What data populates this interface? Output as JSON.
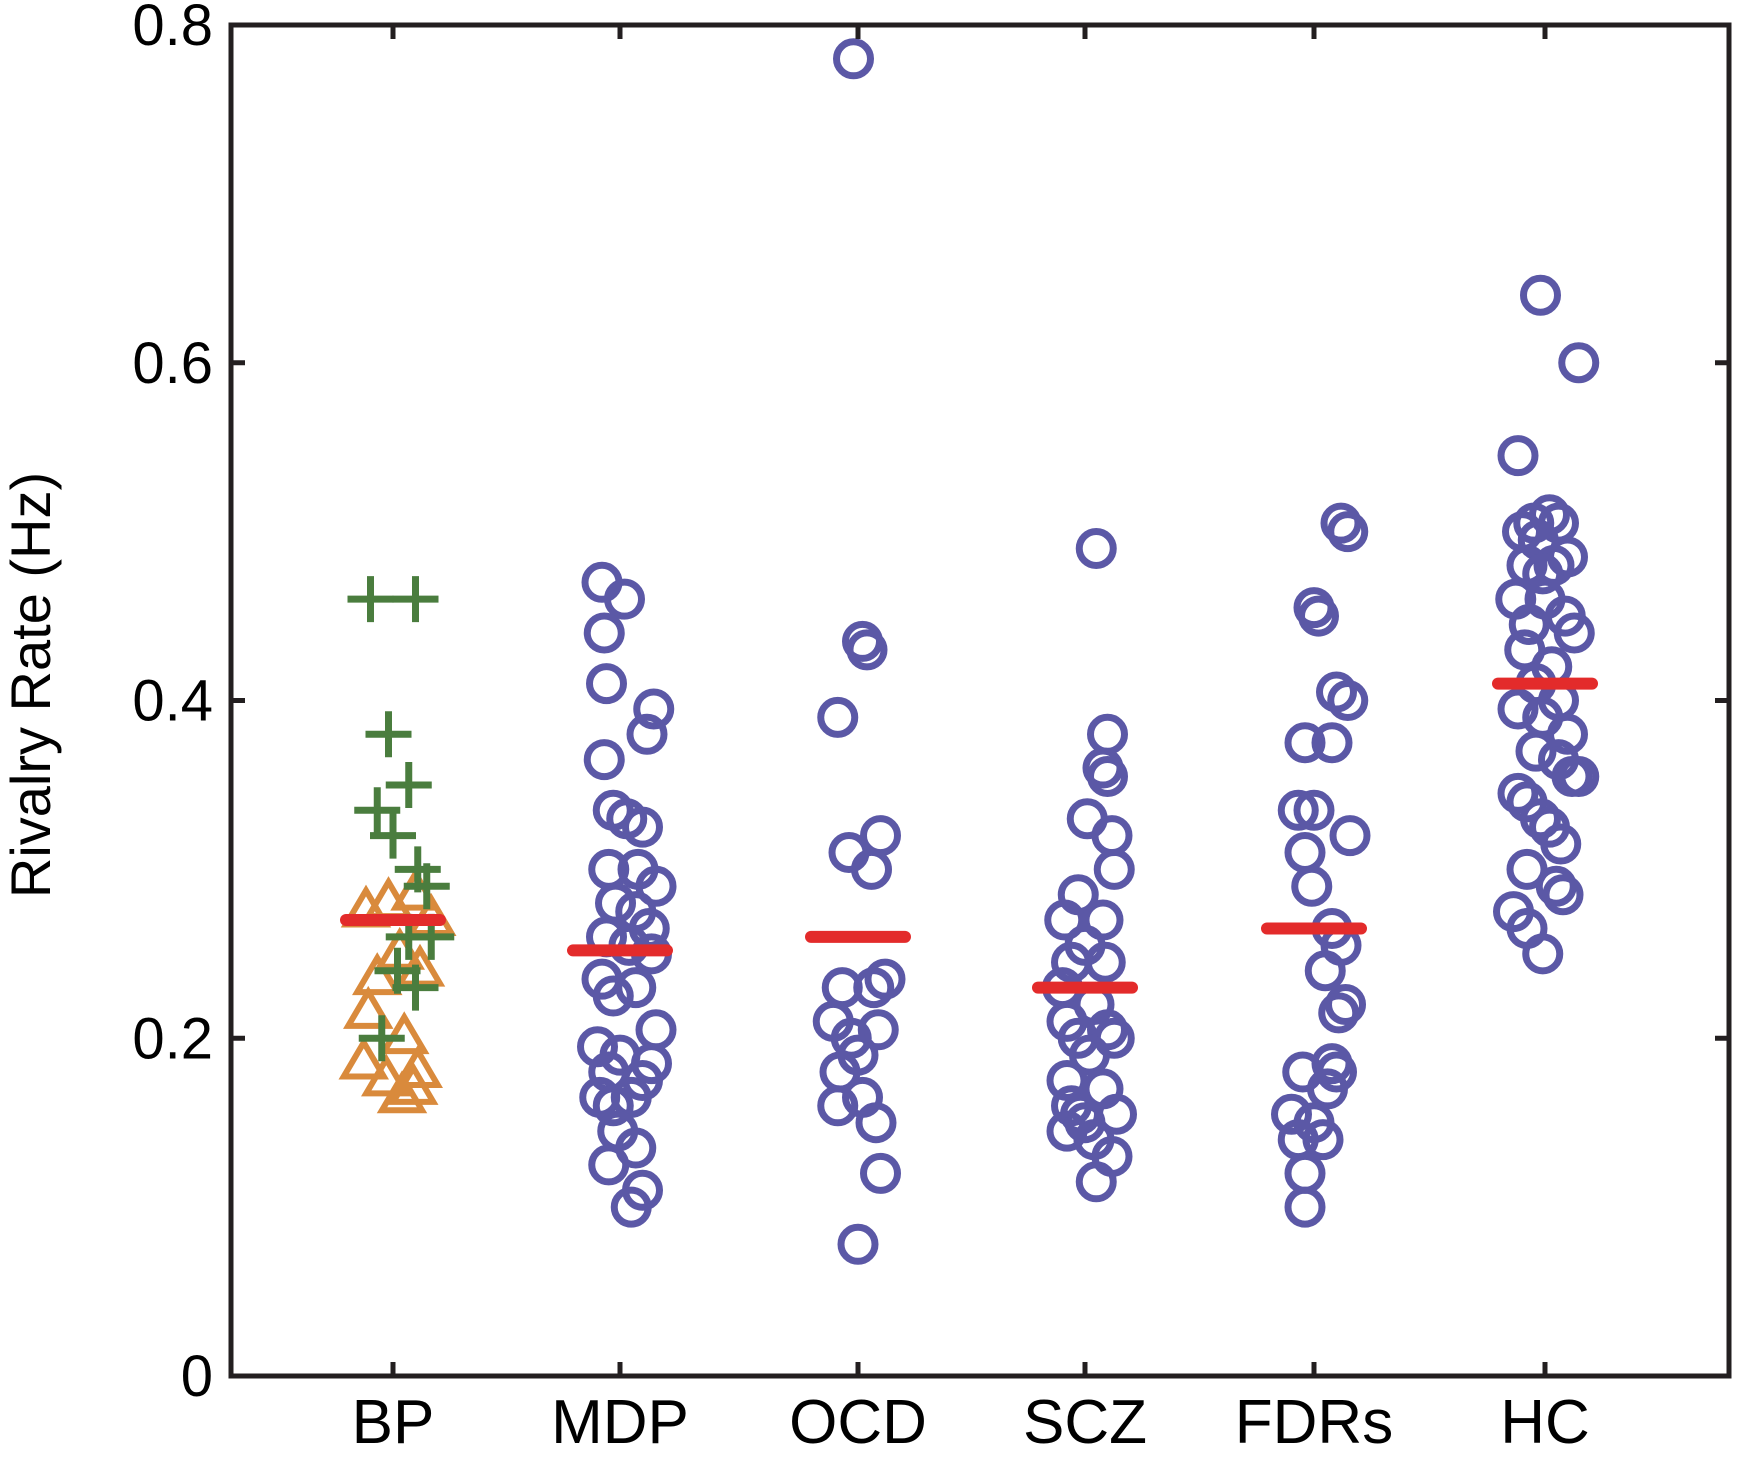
{
  "chart_data": {
    "type": "scatter",
    "title": "",
    "xlabel": "",
    "ylabel": "Rivalry Rate (Hz)",
    "ylim": [
      0,
      0.8
    ],
    "yticks": [
      0,
      0.2,
      0.4,
      0.6,
      0.8
    ],
    "ytick_labels": [
      "0",
      "0.2",
      "0.4",
      "0.6",
      "0.8"
    ],
    "categories": [
      "BP",
      "MDP",
      "OCD",
      "SCZ",
      "FDRs",
      "HC"
    ],
    "grid": false,
    "legend": "none",
    "colors": {
      "circle": "#5b58a6",
      "triangle": "#d98a3c",
      "plus": "#4a7d3e",
      "mean": "#e32b2b",
      "axis": "#231f20"
    },
    "series": [
      {
        "category": "BP",
        "marker": "plus",
        "points": [
          [
            -0.1,
            0.46
          ],
          [
            0.1,
            0.46
          ],
          [
            -0.02,
            0.38
          ],
          [
            -0.07,
            0.335
          ],
          [
            0.07,
            0.35
          ],
          [
            0.0,
            0.32
          ],
          [
            0.11,
            0.3
          ],
          [
            0.15,
            0.29
          ],
          [
            0.07,
            0.26
          ],
          [
            0.17,
            0.26
          ],
          [
            0.02,
            0.24
          ],
          [
            0.1,
            0.23
          ],
          [
            -0.05,
            0.2
          ]
        ]
      },
      {
        "category": "BP",
        "marker": "triangle",
        "points": [
          [
            -0.12,
            0.275
          ],
          [
            -0.02,
            0.28
          ],
          [
            0.1,
            0.285
          ],
          [
            0.17,
            0.27
          ],
          [
            0.03,
            0.25
          ],
          [
            -0.07,
            0.235
          ],
          [
            0.12,
            0.24
          ],
          [
            -0.11,
            0.215
          ],
          [
            0.05,
            0.2
          ],
          [
            -0.13,
            0.185
          ],
          [
            0.11,
            0.18
          ],
          [
            -0.03,
            0.175
          ],
          [
            0.09,
            0.17
          ],
          [
            0.04,
            0.165
          ]
        ]
      },
      {
        "category": "MDP",
        "marker": "circle",
        "points": [
          [
            -0.08,
            0.47
          ],
          [
            0.02,
            0.46
          ],
          [
            -0.07,
            0.44
          ],
          [
            -0.06,
            0.41
          ],
          [
            0.15,
            0.395
          ],
          [
            0.12,
            0.38
          ],
          [
            -0.07,
            0.365
          ],
          [
            -0.03,
            0.335
          ],
          [
            0.03,
            0.33
          ],
          [
            0.1,
            0.325
          ],
          [
            -0.05,
            0.3
          ],
          [
            0.08,
            0.3
          ],
          [
            0.16,
            0.29
          ],
          [
            -0.02,
            0.28
          ],
          [
            0.07,
            0.275
          ],
          [
            0.13,
            0.265
          ],
          [
            -0.06,
            0.26
          ],
          [
            0.04,
            0.255
          ],
          [
            0.14,
            0.25
          ],
          [
            -0.08,
            0.235
          ],
          [
            -0.03,
            0.225
          ],
          [
            0.07,
            0.23
          ],
          [
            0.16,
            0.205
          ],
          [
            -0.1,
            0.195
          ],
          [
            0.0,
            0.19
          ],
          [
            -0.05,
            0.18
          ],
          [
            0.1,
            0.175
          ],
          [
            -0.09,
            0.165
          ],
          [
            -0.03,
            0.16
          ],
          [
            0.05,
            0.165
          ],
          [
            0.14,
            0.185
          ],
          [
            -0.01,
            0.145
          ],
          [
            0.07,
            0.135
          ],
          [
            -0.05,
            0.125
          ],
          [
            0.1,
            0.11
          ],
          [
            0.05,
            0.1
          ]
        ]
      },
      {
        "category": "OCD",
        "marker": "circle",
        "points": [
          [
            -0.02,
            0.78
          ],
          [
            0.02,
            0.435
          ],
          [
            0.04,
            0.43
          ],
          [
            -0.09,
            0.39
          ],
          [
            0.1,
            0.32
          ],
          [
            -0.04,
            0.31
          ],
          [
            0.06,
            0.3
          ],
          [
            -0.07,
            0.23
          ],
          [
            0.07,
            0.23
          ],
          [
            0.12,
            0.235
          ],
          [
            -0.11,
            0.21
          ],
          [
            0.09,
            0.205
          ],
          [
            -0.03,
            0.2
          ],
          [
            0.0,
            0.19
          ],
          [
            -0.08,
            0.18
          ],
          [
            0.02,
            0.165
          ],
          [
            -0.09,
            0.16
          ],
          [
            0.08,
            0.15
          ],
          [
            0.1,
            0.12
          ],
          [
            0.0,
            0.078
          ]
        ]
      },
      {
        "category": "SCZ",
        "marker": "circle",
        "points": [
          [
            0.05,
            0.49
          ],
          [
            0.1,
            0.38
          ],
          [
            0.08,
            0.36
          ],
          [
            0.1,
            0.355
          ],
          [
            0.01,
            0.33
          ],
          [
            0.12,
            0.32
          ],
          [
            0.13,
            0.3
          ],
          [
            -0.03,
            0.285
          ],
          [
            -0.09,
            0.27
          ],
          [
            0.08,
            0.27
          ],
          [
            0.0,
            0.255
          ],
          [
            -0.06,
            0.245
          ],
          [
            0.09,
            0.245
          ],
          [
            -0.1,
            0.23
          ],
          [
            0.04,
            0.22
          ],
          [
            -0.08,
            0.21
          ],
          [
            0.1,
            0.205
          ],
          [
            -0.03,
            0.2
          ],
          [
            0.13,
            0.2
          ],
          [
            0.02,
            0.19
          ],
          [
            -0.08,
            0.175
          ],
          [
            0.08,
            0.17
          ],
          [
            -0.06,
            0.16
          ],
          [
            -0.02,
            0.155
          ],
          [
            0.14,
            0.155
          ],
          [
            0.0,
            0.15
          ],
          [
            -0.08,
            0.145
          ],
          [
            0.04,
            0.14
          ],
          [
            0.12,
            0.13
          ],
          [
            0.05,
            0.115
          ]
        ]
      },
      {
        "category": "FDRs",
        "marker": "circle",
        "points": [
          [
            0.12,
            0.505
          ],
          [
            0.15,
            0.5
          ],
          [
            0.0,
            0.455
          ],
          [
            0.02,
            0.45
          ],
          [
            0.1,
            0.405
          ],
          [
            0.15,
            0.4
          ],
          [
            -0.04,
            0.375
          ],
          [
            0.08,
            0.375
          ],
          [
            -0.07,
            0.335
          ],
          [
            0.0,
            0.335
          ],
          [
            -0.04,
            0.31
          ],
          [
            0.16,
            0.32
          ],
          [
            -0.01,
            0.29
          ],
          [
            0.08,
            0.265
          ],
          [
            0.12,
            0.255
          ],
          [
            0.05,
            0.24
          ],
          [
            0.14,
            0.22
          ],
          [
            0.11,
            0.215
          ],
          [
            -0.05,
            0.18
          ],
          [
            0.08,
            0.185
          ],
          [
            0.1,
            0.18
          ],
          [
            -0.1,
            0.155
          ],
          [
            0.0,
            0.15
          ],
          [
            0.06,
            0.17
          ],
          [
            -0.07,
            0.14
          ],
          [
            0.04,
            0.14
          ],
          [
            -0.04,
            0.12
          ],
          [
            -0.04,
            0.1
          ]
        ]
      },
      {
        "category": "HC",
        "marker": "circle",
        "points": [
          [
            -0.02,
            0.64
          ],
          [
            0.15,
            0.6
          ],
          [
            -0.12,
            0.545
          ],
          [
            0.02,
            0.51
          ],
          [
            -0.05,
            0.505
          ],
          [
            -0.1,
            0.5
          ],
          [
            0.06,
            0.505
          ],
          [
            -0.03,
            0.495
          ],
          [
            -0.08,
            0.48
          ],
          [
            0.1,
            0.485
          ],
          [
            0.04,
            0.48
          ],
          [
            -0.01,
            0.475
          ],
          [
            -0.13,
            0.46
          ],
          [
            0.0,
            0.46
          ],
          [
            0.09,
            0.45
          ],
          [
            -0.07,
            0.445
          ],
          [
            0.13,
            0.44
          ],
          [
            -0.09,
            0.43
          ],
          [
            0.03,
            0.42
          ],
          [
            -0.04,
            0.41
          ],
          [
            0.06,
            0.4
          ],
          [
            -0.12,
            0.395
          ],
          [
            -0.01,
            0.39
          ],
          [
            0.1,
            0.38
          ],
          [
            -0.04,
            0.37
          ],
          [
            0.06,
            0.365
          ],
          [
            0.12,
            0.355
          ],
          [
            0.15,
            0.355
          ],
          [
            -0.12,
            0.345
          ],
          [
            -0.08,
            0.34
          ],
          [
            -0.02,
            0.33
          ],
          [
            0.02,
            0.325
          ],
          [
            0.07,
            0.315
          ],
          [
            -0.08,
            0.3
          ],
          [
            0.05,
            0.29
          ],
          [
            0.08,
            0.285
          ],
          [
            -0.14,
            0.275
          ],
          [
            -0.08,
            0.265
          ],
          [
            -0.01,
            0.25
          ]
        ]
      }
    ],
    "means": [
      {
        "category": "BP",
        "value": 0.27
      },
      {
        "category": "MDP",
        "value": 0.252
      },
      {
        "category": "OCD",
        "value": 0.26
      },
      {
        "category": "SCZ",
        "value": 0.23
      },
      {
        "category": "FDRs",
        "value": 0.265
      },
      {
        "category": "HC",
        "value": 0.41
      }
    ]
  }
}
